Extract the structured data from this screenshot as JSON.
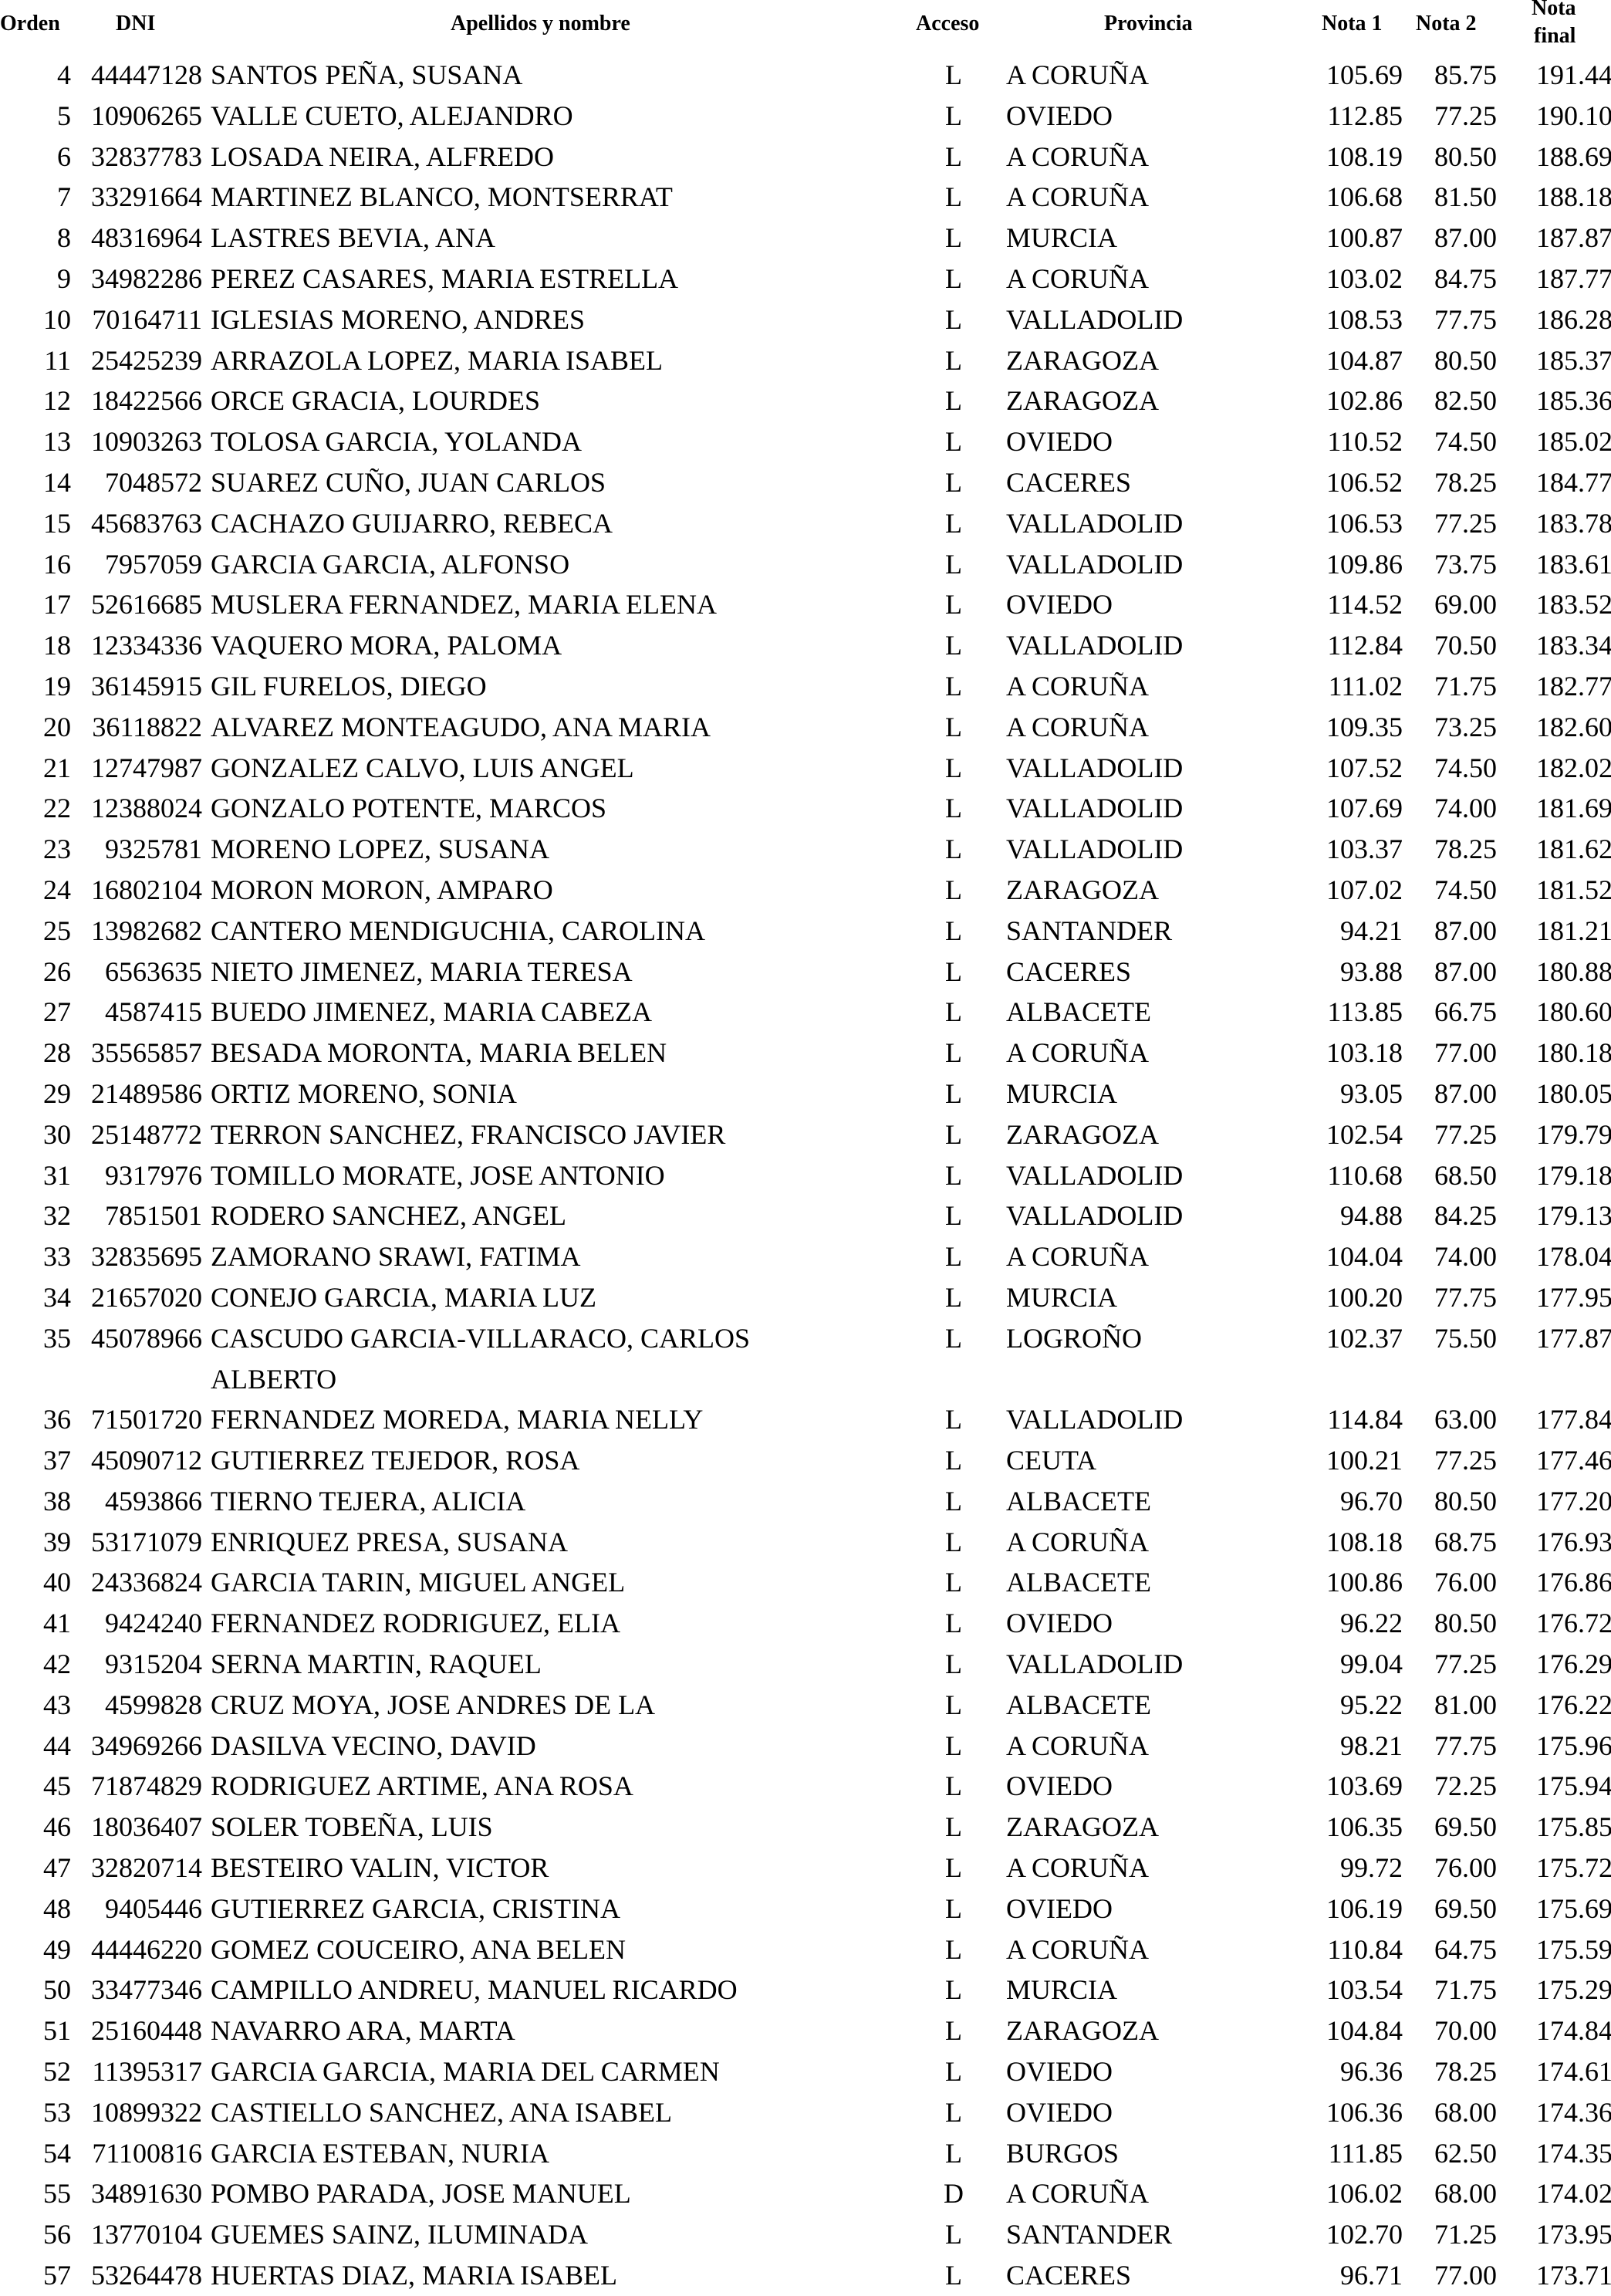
{
  "headers": {
    "orden": "Orden",
    "dni": "DNI",
    "nombre": "Apellidos y nombre",
    "acceso": "Acceso",
    "provincia": "Provincia",
    "nota1": "Nota 1",
    "nota2": "Nota 2",
    "nota_final_1": "Nota",
    "nota_final_2": "final"
  },
  "rows": [
    [
      "4",
      "44447128",
      "SANTOS PEÑA, SUSANA",
      "L",
      "A CORUÑA",
      "105.69",
      "85.75",
      "191.44"
    ],
    [
      "5",
      "10906265",
      "VALLE CUETO, ALEJANDRO",
      "L",
      "OVIEDO",
      "112.85",
      "77.25",
      "190.10"
    ],
    [
      "6",
      "32837783",
      "LOSADA NEIRA, ALFREDO",
      "L",
      "A CORUÑA",
      "108.19",
      "80.50",
      "188.69"
    ],
    [
      "7",
      "33291664",
      "MARTINEZ BLANCO, MONTSERRAT",
      "L",
      "A CORUÑA",
      "106.68",
      "81.50",
      "188.18"
    ],
    [
      "8",
      "48316964",
      "LASTRES BEVIA, ANA",
      "L",
      "MURCIA",
      "100.87",
      "87.00",
      "187.87"
    ],
    [
      "9",
      "34982286",
      "PEREZ CASARES, MARIA ESTRELLA",
      "L",
      "A CORUÑA",
      "103.02",
      "84.75",
      "187.77"
    ],
    [
      "10",
      "70164711",
      "IGLESIAS MORENO, ANDRES",
      "L",
      "VALLADOLID",
      "108.53",
      "77.75",
      "186.28"
    ],
    [
      "11",
      "25425239",
      "ARRAZOLA LOPEZ, MARIA ISABEL",
      "L",
      "ZARAGOZA",
      "104.87",
      "80.50",
      "185.37"
    ],
    [
      "12",
      "18422566",
      "ORCE GRACIA, LOURDES",
      "L",
      "ZARAGOZA",
      "102.86",
      "82.50",
      "185.36"
    ],
    [
      "13",
      "10903263",
      "TOLOSA GARCIA, YOLANDA",
      "L",
      "OVIEDO",
      "110.52",
      "74.50",
      "185.02"
    ],
    [
      "14",
      "7048572",
      "SUAREZ CUÑO, JUAN CARLOS",
      "L",
      "CACERES",
      "106.52",
      "78.25",
      "184.77"
    ],
    [
      "15",
      "45683763",
      "CACHAZO GUIJARRO, REBECA",
      "L",
      "VALLADOLID",
      "106.53",
      "77.25",
      "183.78"
    ],
    [
      "16",
      "7957059",
      "GARCIA GARCIA, ALFONSO",
      "L",
      "VALLADOLID",
      "109.86",
      "73.75",
      "183.61"
    ],
    [
      "17",
      "52616685",
      "MUSLERA FERNANDEZ, MARIA ELENA",
      "L",
      "OVIEDO",
      "114.52",
      "69.00",
      "183.52"
    ],
    [
      "18",
      "12334336",
      "VAQUERO MORA, PALOMA",
      "L",
      "VALLADOLID",
      "112.84",
      "70.50",
      "183.34"
    ],
    [
      "19",
      "36145915",
      "GIL FURELOS, DIEGO",
      "L",
      "A CORUÑA",
      "111.02",
      "71.75",
      "182.77"
    ],
    [
      "20",
      "36118822",
      "ALVAREZ MONTEAGUDO, ANA MARIA",
      "L",
      "A CORUÑA",
      "109.35",
      "73.25",
      "182.60"
    ],
    [
      "21",
      "12747987",
      "GONZALEZ CALVO, LUIS ANGEL",
      "L",
      "VALLADOLID",
      "107.52",
      "74.50",
      "182.02"
    ],
    [
      "22",
      "12388024",
      "GONZALO POTENTE, MARCOS",
      "L",
      "VALLADOLID",
      "107.69",
      "74.00",
      "181.69"
    ],
    [
      "23",
      "9325781",
      "MORENO LOPEZ, SUSANA",
      "L",
      "VALLADOLID",
      "103.37",
      "78.25",
      "181.62"
    ],
    [
      "24",
      "16802104",
      "MORON MORON, AMPARO",
      "L",
      "ZARAGOZA",
      "107.02",
      "74.50",
      "181.52"
    ],
    [
      "25",
      "13982682",
      "CANTERO MENDIGUCHIA, CAROLINA",
      "L",
      "SANTANDER",
      "94.21",
      "87.00",
      "181.21"
    ],
    [
      "26",
      "6563635",
      "NIETO JIMENEZ, MARIA TERESA",
      "L",
      "CACERES",
      "93.88",
      "87.00",
      "180.88"
    ],
    [
      "27",
      "4587415",
      "BUEDO JIMENEZ, MARIA CABEZA",
      "L",
      "ALBACETE",
      "113.85",
      "66.75",
      "180.60"
    ],
    [
      "28",
      "35565857",
      "BESADA MORONTA, MARIA BELEN",
      "L",
      "A CORUÑA",
      "103.18",
      "77.00",
      "180.18"
    ],
    [
      "29",
      "21489586",
      "ORTIZ MORENO, SONIA",
      "L",
      "MURCIA",
      "93.05",
      "87.00",
      "180.05"
    ],
    [
      "30",
      "25148772",
      "TERRON SANCHEZ, FRANCISCO JAVIER",
      "L",
      "ZARAGOZA",
      "102.54",
      "77.25",
      "179.79"
    ],
    [
      "31",
      "9317976",
      "TOMILLO MORATE, JOSE ANTONIO",
      "L",
      "VALLADOLID",
      "110.68",
      "68.50",
      "179.18"
    ],
    [
      "32",
      "7851501",
      "RODERO SANCHEZ, ANGEL",
      "L",
      "VALLADOLID",
      "94.88",
      "84.25",
      "179.13"
    ],
    [
      "33",
      "32835695",
      "ZAMORANO SRAWI, FATIMA",
      "L",
      "A CORUÑA",
      "104.04",
      "74.00",
      "178.04"
    ],
    [
      "34",
      "21657020",
      "CONEJO GARCIA, MARIA LUZ",
      "L",
      "MURCIA",
      "100.20",
      "77.75",
      "177.95"
    ],
    [
      "35",
      "45078966",
      "CASCUDO GARCIA-VILLARACO, CARLOS ALBERTO",
      "L",
      "LOGROÑO",
      "102.37",
      "75.50",
      "177.87"
    ],
    [
      "36",
      "71501720",
      "FERNANDEZ MOREDA, MARIA NELLY",
      "L",
      "VALLADOLID",
      "114.84",
      "63.00",
      "177.84"
    ],
    [
      "37",
      "45090712",
      "GUTIERREZ TEJEDOR, ROSA",
      "L",
      "CEUTA",
      "100.21",
      "77.25",
      "177.46"
    ],
    [
      "38",
      "4593866",
      "TIERNO TEJERA, ALICIA",
      "L",
      "ALBACETE",
      "96.70",
      "80.50",
      "177.20"
    ],
    [
      "39",
      "53171079",
      "ENRIQUEZ PRESA, SUSANA",
      "L",
      "A CORUÑA",
      "108.18",
      "68.75",
      "176.93"
    ],
    [
      "40",
      "24336824",
      "GARCIA TARIN, MIGUEL ANGEL",
      "L",
      "ALBACETE",
      "100.86",
      "76.00",
      "176.86"
    ],
    [
      "41",
      "9424240",
      "FERNANDEZ RODRIGUEZ, ELIA",
      "L",
      "OVIEDO",
      "96.22",
      "80.50",
      "176.72"
    ],
    [
      "42",
      "9315204",
      "SERNA MARTIN, RAQUEL",
      "L",
      "VALLADOLID",
      "99.04",
      "77.25",
      "176.29"
    ],
    [
      "43",
      "4599828",
      "CRUZ MOYA, JOSE ANDRES DE LA",
      "L",
      "ALBACETE",
      "95.22",
      "81.00",
      "176.22"
    ],
    [
      "44",
      "34969266",
      "DASILVA VECINO, DAVID",
      "L",
      "A CORUÑA",
      "98.21",
      "77.75",
      "175.96"
    ],
    [
      "45",
      "71874829",
      "RODRIGUEZ ARTIME, ANA ROSA",
      "L",
      "OVIEDO",
      "103.69",
      "72.25",
      "175.94"
    ],
    [
      "46",
      "18036407",
      "SOLER TOBEÑA, LUIS",
      "L",
      "ZARAGOZA",
      "106.35",
      "69.50",
      "175.85"
    ],
    [
      "47",
      "32820714",
      "BESTEIRO VALIN, VICTOR",
      "L",
      "A CORUÑA",
      "99.72",
      "76.00",
      "175.72"
    ],
    [
      "48",
      "9405446",
      "GUTIERREZ GARCIA, CRISTINA",
      "L",
      "OVIEDO",
      "106.19",
      "69.50",
      "175.69"
    ],
    [
      "49",
      "44446220",
      "GOMEZ COUCEIRO, ANA BELEN",
      "L",
      "A CORUÑA",
      "110.84",
      "64.75",
      "175.59"
    ],
    [
      "50",
      "33477346",
      "CAMPILLO ANDREU, MANUEL RICARDO",
      "L",
      "MURCIA",
      "103.54",
      "71.75",
      "175.29"
    ],
    [
      "51",
      "25160448",
      "NAVARRO ARA, MARTA",
      "L",
      "ZARAGOZA",
      "104.84",
      "70.00",
      "174.84"
    ],
    [
      "52",
      "11395317",
      "GARCIA GARCIA, MARIA DEL CARMEN",
      "L",
      "OVIEDO",
      "96.36",
      "78.25",
      "174.61"
    ],
    [
      "53",
      "10899322",
      "CASTIELLO SANCHEZ, ANA ISABEL",
      "L",
      "OVIEDO",
      "106.36",
      "68.00",
      "174.36"
    ],
    [
      "54",
      "71100816",
      "GARCIA ESTEBAN, NURIA",
      "L",
      "BURGOS",
      "111.85",
      "62.50",
      "174.35"
    ],
    [
      "55",
      "34891630",
      "POMBO PARADA, JOSE MANUEL",
      "D",
      "A CORUÑA",
      "106.02",
      "68.00",
      "174.02"
    ],
    [
      "56",
      "13770104",
      "GUEMES SAINZ, ILUMINADA",
      "L",
      "SANTANDER",
      "102.70",
      "71.25",
      "173.95"
    ],
    [
      "57",
      "53264478",
      "HUERTAS DIAZ, MARIA ISABEL",
      "L",
      "CACERES",
      "96.71",
      "77.00",
      "173.71"
    ]
  ]
}
